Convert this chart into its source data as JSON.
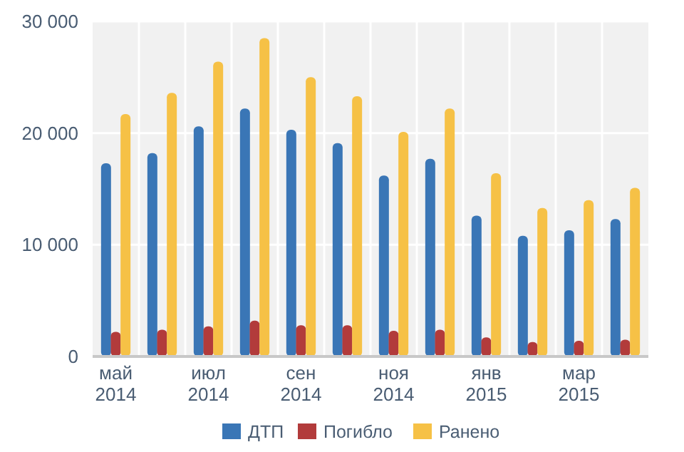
{
  "chart_data": {
    "type": "bar",
    "categories": [
      "май 2014",
      null,
      "июл 2014",
      null,
      "сен 2014",
      null,
      "ноя 2014",
      null,
      "янв 2015",
      null,
      "мар 2015",
      null
    ],
    "series": [
      {
        "name": "ДТП",
        "color": "#3a76b6",
        "values": [
          17300,
          18200,
          20600,
          22200,
          20300,
          19100,
          16200,
          17700,
          12600,
          10800,
          11300,
          12300
        ]
      },
      {
        "name": "Погибло",
        "color": "#b23b3b",
        "values": [
          2200,
          2400,
          2700,
          3200,
          2800,
          2800,
          2300,
          2400,
          1700,
          1300,
          1400,
          1500
        ]
      },
      {
        "name": "Ранено",
        "color": "#f6c146",
        "values": [
          21700,
          23600,
          26400,
          28500,
          25000,
          23300,
          20100,
          22200,
          16400,
          13300,
          14000,
          15100
        ]
      }
    ],
    "ylim": [
      0,
      30000
    ],
    "yticks": [
      0,
      {
        "value": 10000,
        "label": "10 000"
      },
      {
        "value": 20000,
        "label": "20 000"
      },
      {
        "value": 30000,
        "label": "30 000"
      }
    ],
    "grid": true,
    "legend": "bottom"
  }
}
